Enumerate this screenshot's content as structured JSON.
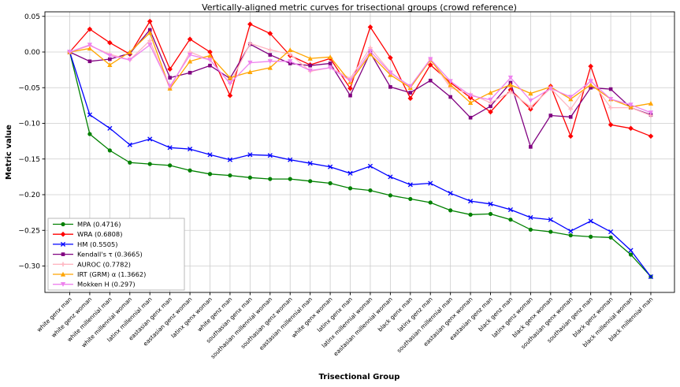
{
  "chart_data": {
    "type": "line",
    "title": "Vertically-aligned metric curves for trisectional groups (crowd reference)",
    "xlabel": "Trisectional Group",
    "ylabel": "Metric value",
    "grid": true,
    "legend_position": "lower left",
    "ylim": [
      -0.337,
      0.053
    ],
    "y_ticks": [
      0.05,
      0.0,
      -0.05,
      -0.1,
      -0.15,
      -0.2,
      -0.25,
      -0.3
    ],
    "categories": [
      "white genx man",
      "white genz woman",
      "white millennial man",
      "white millennial woman",
      "latinx millennial man",
      "eastasian genx man",
      "eastasian genz woman",
      "latinx genx woman",
      "white genz man",
      "southasian genx man",
      "southasian millennial woman",
      "southasian genz woman",
      "eastasian millennial man",
      "white genx woman",
      "latinx genx man",
      "latinx millennial woman",
      "eastasian millennial woman",
      "black genx man",
      "latinx genz man",
      "southasian millennial man",
      "eastasian genx woman",
      "eastasian genz man",
      "black genz man",
      "latinx genz woman",
      "black genx woman",
      "southasian genx woman",
      "southasian genz man",
      "black genz woman",
      "black millennial woman",
      "black millennial man"
    ],
    "series": [
      {
        "name": "MPA (0.4716)",
        "color": "#008000",
        "marker": "circle",
        "values": [
          0.0,
          -0.115,
          -0.138,
          -0.155,
          -0.157,
          -0.159,
          -0.166,
          -0.171,
          -0.173,
          -0.176,
          -0.178,
          -0.178,
          -0.181,
          -0.184,
          -0.191,
          -0.194,
          -0.201,
          -0.206,
          -0.211,
          -0.222,
          -0.228,
          -0.227,
          -0.235,
          -0.249,
          -0.252,
          -0.257,
          -0.259,
          -0.26,
          -0.284,
          -0.315
        ]
      },
      {
        "name": "WRA (0.6808)",
        "color": "#ff0000",
        "marker": "diamond",
        "values": [
          0.0,
          0.032,
          0.013,
          -0.003,
          0.043,
          -0.024,
          0.018,
          0.0,
          -0.061,
          0.039,
          0.026,
          -0.005,
          -0.018,
          -0.009,
          -0.051,
          0.035,
          -0.008,
          -0.065,
          -0.018,
          -0.043,
          -0.064,
          -0.084,
          -0.053,
          -0.08,
          -0.048,
          -0.118,
          -0.02,
          -0.102,
          -0.107,
          -0.118
        ]
      },
      {
        "name": "HM (0.5505)",
        "color": "#0000ff",
        "marker": "x",
        "values": [
          0.0,
          -0.088,
          -0.107,
          -0.13,
          -0.122,
          -0.134,
          -0.136,
          -0.144,
          -0.151,
          -0.144,
          -0.145,
          -0.151,
          -0.156,
          -0.161,
          -0.17,
          -0.16,
          -0.175,
          -0.186,
          -0.184,
          -0.198,
          -0.209,
          -0.213,
          -0.221,
          -0.232,
          -0.235,
          -0.251,
          -0.237,
          -0.252,
          -0.278,
          -0.315
        ]
      },
      {
        "name": "Kendall's τ (0.3665)",
        "color": "#800080",
        "marker": "square",
        "values": [
          0.0,
          -0.013,
          -0.01,
          -0.002,
          0.031,
          -0.036,
          -0.029,
          -0.019,
          -0.037,
          0.011,
          -0.004,
          -0.016,
          -0.019,
          -0.016,
          -0.061,
          -0.001,
          -0.049,
          -0.057,
          -0.04,
          -0.063,
          -0.092,
          -0.076,
          -0.043,
          -0.133,
          -0.089,
          -0.091,
          -0.05,
          -0.052,
          -0.078,
          -0.088
        ]
      },
      {
        "name": "AUROC (0.7782)",
        "color": "#ffb6c1",
        "marker": "plus",
        "values": [
          0.0,
          0.009,
          -0.003,
          -0.011,
          0.016,
          -0.051,
          0.0,
          -0.011,
          -0.044,
          0.012,
          0.003,
          -0.003,
          -0.027,
          -0.022,
          -0.037,
          0.006,
          -0.028,
          -0.05,
          -0.01,
          -0.05,
          -0.059,
          -0.071,
          -0.056,
          -0.077,
          -0.051,
          -0.08,
          -0.039,
          -0.078,
          -0.078,
          -0.089
        ]
      },
      {
        "name": "IRT (GRM) α (1.3662)",
        "color": "#ffa500",
        "marker": "triangle-up",
        "values": [
          0.0,
          0.005,
          -0.018,
          0.0,
          0.027,
          -0.051,
          -0.013,
          -0.005,
          -0.036,
          -0.028,
          -0.022,
          0.003,
          -0.009,
          -0.007,
          -0.042,
          -0.003,
          -0.032,
          -0.05,
          -0.011,
          -0.046,
          -0.071,
          -0.057,
          -0.046,
          -0.058,
          -0.049,
          -0.066,
          -0.046,
          -0.066,
          -0.077,
          -0.072
        ]
      },
      {
        "name": "Mokken H (0.297)",
        "color": "#ee82ee",
        "marker": "triangle-down",
        "values": [
          0.0,
          0.01,
          -0.005,
          -0.011,
          0.01,
          -0.048,
          -0.004,
          -0.011,
          -0.044,
          -0.015,
          -0.013,
          -0.013,
          -0.026,
          -0.022,
          -0.04,
          0.001,
          -0.029,
          -0.048,
          -0.01,
          -0.041,
          -0.061,
          -0.067,
          -0.036,
          -0.068,
          -0.051,
          -0.063,
          -0.041,
          -0.066,
          -0.074,
          -0.085
        ]
      }
    ]
  }
}
